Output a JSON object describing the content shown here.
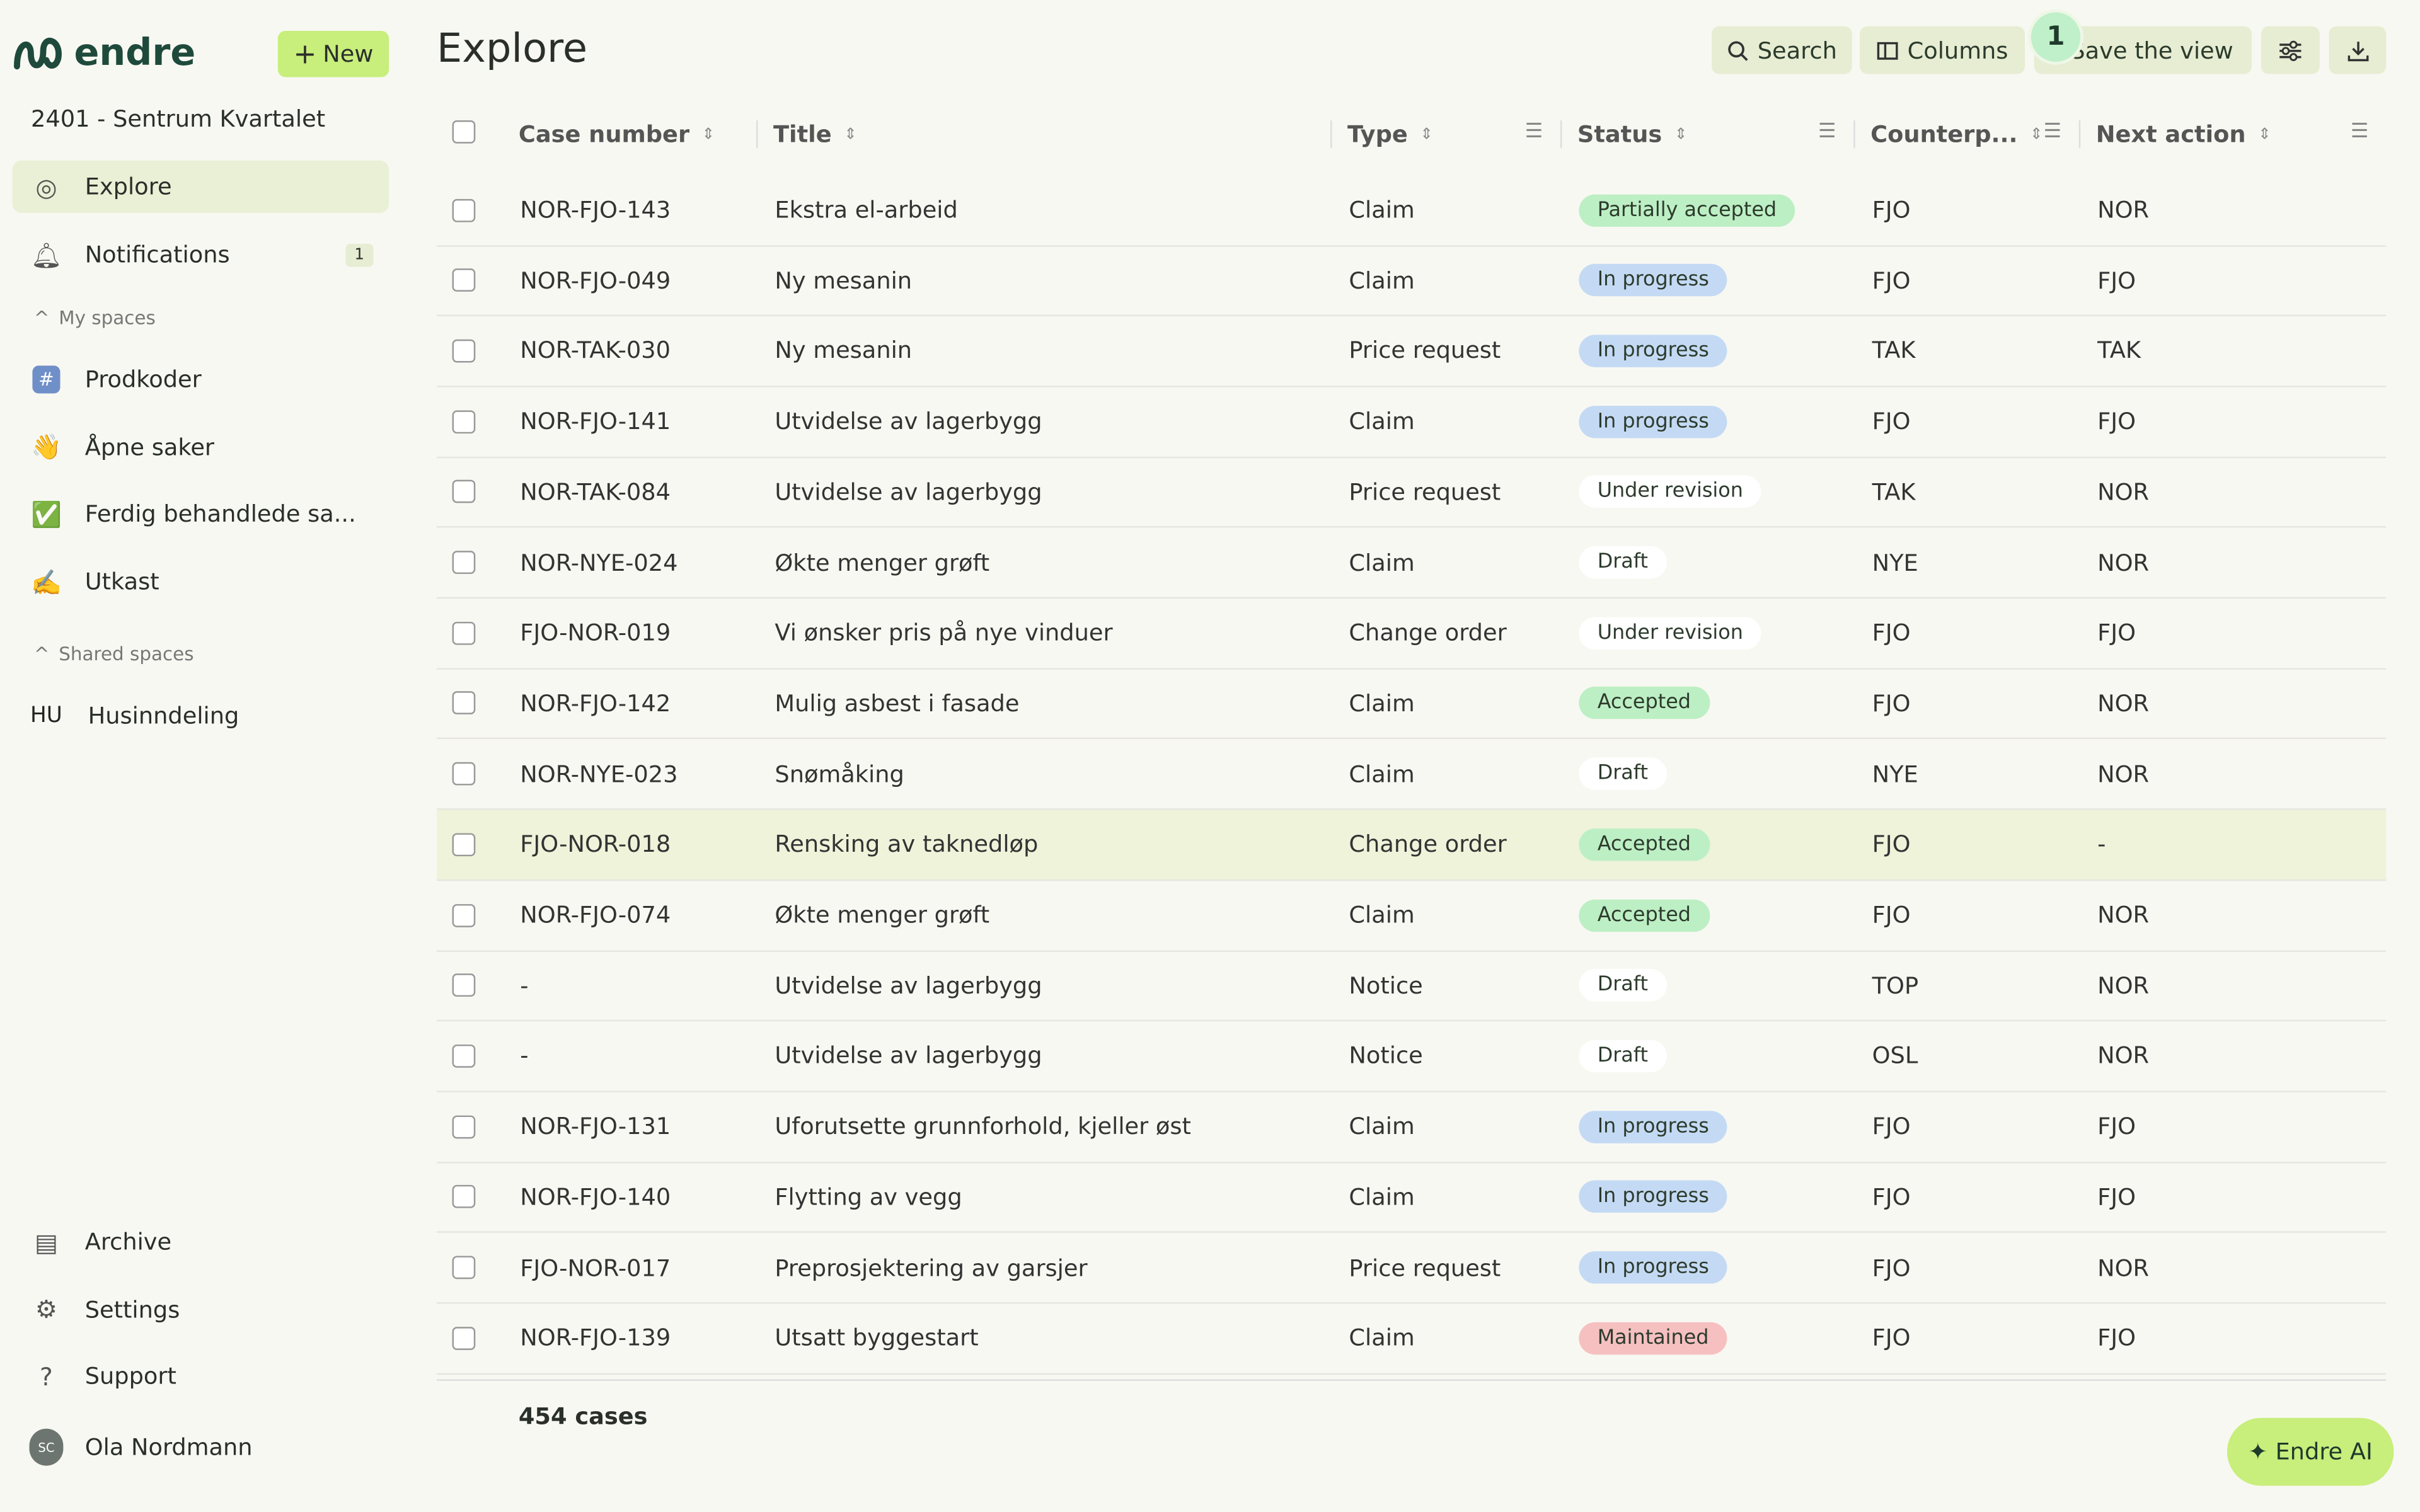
{
  "sidebar": {
    "logo": "endre",
    "new_button": "New",
    "project": "2401 - Sentrum Kvartalet",
    "nav": [
      {
        "label": "Explore"
      },
      {
        "label": "Notifications",
        "badge": "1"
      }
    ],
    "my_spaces_heading": "My spaces",
    "my_spaces": [
      {
        "icon": "#",
        "label": "Prodkoder"
      },
      {
        "icon": "👋",
        "label": "Åpne saker"
      },
      {
        "icon": "✅",
        "label": "Ferdig behandlede sa..."
      },
      {
        "icon": "✍️",
        "label": "Utkast"
      }
    ],
    "shared_spaces_heading": "Shared spaces",
    "shared_spaces": [
      {
        "icon": "HU",
        "label": "Husinndeling"
      }
    ],
    "bottom": [
      {
        "label": "Archive"
      },
      {
        "label": "Settings"
      },
      {
        "label": "Support"
      }
    ],
    "user": {
      "initials": "SC",
      "name": "Ola Nordmann"
    }
  },
  "header": {
    "title": "Explore",
    "buttons": [
      "Search",
      "Columns",
      "Save the view"
    ],
    "save_badge": "1"
  },
  "table": {
    "columns": [
      "Case number",
      "Title",
      "Type",
      "Status",
      "Counterp...",
      "Next action"
    ],
    "rows": [
      [
        "NOR-FJO-143",
        "Ekstra el-arbeid",
        "Claim",
        {
          "text": "Partially accepted",
          "color": "#bdefc4"
        },
        "FJO",
        "NOR"
      ],
      [
        "NOR-FJO-049",
        "Ny mesanin",
        "Claim",
        {
          "text": "In progress",
          "color": "#c4daf4"
        },
        "FJO",
        "FJO"
      ],
      [
        "NOR-TAK-030",
        "Ny mesanin",
        "Price request",
        {
          "text": "In progress",
          "color": "#c4daf4"
        },
        "TAK",
        "TAK"
      ],
      [
        "NOR-FJO-141",
        "Utvidelse av lagerbygg",
        "Claim",
        {
          "text": "In progress",
          "color": "#c4daf4"
        },
        "FJO",
        "FJO"
      ],
      [
        "NOR-TAK-084",
        "Utvidelse av lagerbygg",
        "Price request",
        {
          "text": "Under revision",
          "color": "#ffffff"
        },
        "TAK",
        "NOR"
      ],
      [
        "NOR-NYE-024",
        "Økte menger grøft",
        "Claim",
        {
          "text": "Draft",
          "color": "#ffffff"
        },
        "NYE",
        "NOR"
      ],
      [
        "FJO-NOR-019",
        "Vi ønsker pris på nye vinduer",
        "Change order",
        {
          "text": "Under revision",
          "color": "#ffffff"
        },
        "FJO",
        "FJO"
      ],
      [
        "NOR-FJO-142",
        "Mulig asbest i fasade",
        "Claim",
        {
          "text": "Accepted",
          "color": "#bdefc4"
        },
        "FJO",
        "NOR"
      ],
      [
        "NOR-NYE-023",
        "Snømåking",
        "Claim",
        {
          "text": "Draft",
          "color": "#ffffff"
        },
        "NYE",
        "NOR"
      ],
      [
        "FJO-NOR-018",
        "Rensking av taknedløp",
        "Change order",
        {
          "text": "Accepted",
          "color": "#bdefc4"
        },
        "FJO",
        "-"
      ],
      [
        "NOR-FJO-074",
        "Økte menger grøft",
        "Claim",
        {
          "text": "Accepted",
          "color": "#bdefc4"
        },
        "FJO",
        "NOR"
      ],
      [
        "-",
        "Utvidelse av lagerbygg",
        "Notice",
        {
          "text": "Draft",
          "color": "#ffffff"
        },
        "TOP",
        "NOR"
      ],
      [
        "-",
        "Utvidelse av lagerbygg",
        "Notice",
        {
          "text": "Draft",
          "color": "#ffffff"
        },
        "OSL",
        "NOR"
      ],
      [
        "NOR-FJO-131",
        "Uforutsette grunnforhold, kjeller øst",
        "Claim",
        {
          "text": "In progress",
          "color": "#c4daf4"
        },
        "FJO",
        "FJO"
      ],
      [
        "NOR-FJO-140",
        "Flytting av vegg",
        "Claim",
        {
          "text": "In progress",
          "color": "#c4daf4"
        },
        "FJO",
        "FJO"
      ],
      [
        "FJO-NOR-017",
        "Preprosjektering av garsjer",
        "Price request",
        {
          "text": "In progress",
          "color": "#c4daf4"
        },
        "FJO",
        "NOR"
      ],
      [
        "NOR-FJO-139",
        "Utsatt byggestart",
        "Claim",
        {
          "text": "Maintained",
          "color": "#f6c0c0"
        },
        "FJO",
        "FJO"
      ]
    ]
  },
  "footer": {
    "count": "454 cases"
  },
  "ai_button": "Endre AI"
}
